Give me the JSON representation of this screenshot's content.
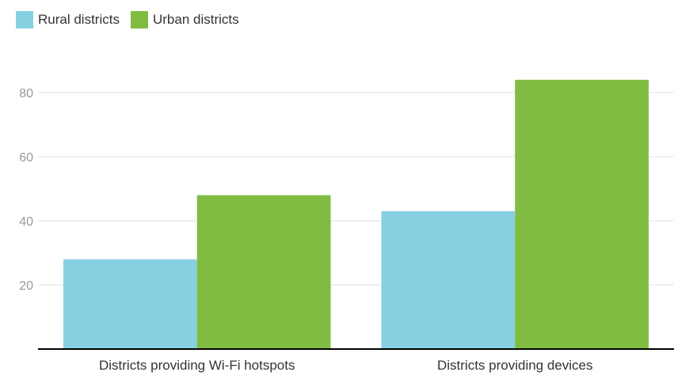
{
  "chart_data": {
    "type": "bar",
    "categories": [
      "Districts providing Wi-Fi hotspots",
      "Districts providing devices"
    ],
    "series": [
      {
        "name": "Rural districts",
        "color": "#85d1e1",
        "values": [
          28,
          43
        ]
      },
      {
        "name": "Urban districts",
        "color": "#80bc42",
        "values": [
          48,
          84
        ]
      }
    ],
    "y_ticks": [
      20,
      40,
      60,
      80
    ],
    "ylim": [
      0,
      84
    ],
    "grid": true,
    "legend_position": "top-left"
  },
  "colors": {
    "grid": "#e3e3e3",
    "axis": "#000000"
  }
}
